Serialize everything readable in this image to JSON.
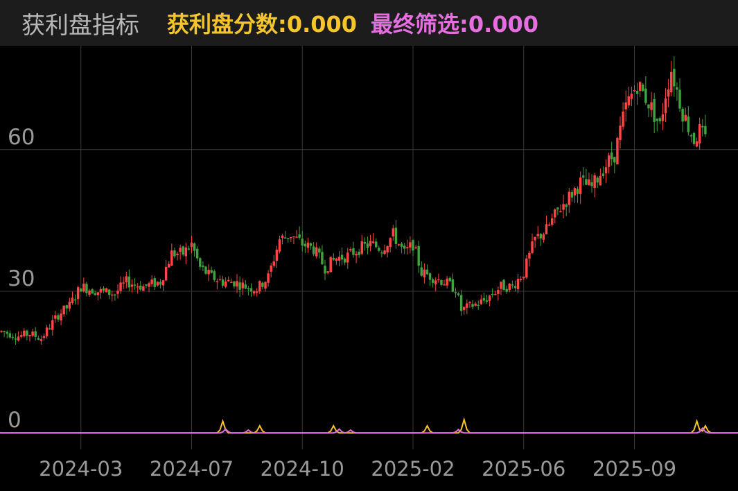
{
  "header": {
    "title": "获利盘指标",
    "score_label": "获利盘分数:",
    "score_value": "0.000",
    "final_label": "最终筛选:",
    "final_value": "0.000"
  },
  "colors": {
    "background": "#000000",
    "header_bg": "#1c1c1c",
    "up": "#ff4545",
    "down": "#3fa33f",
    "score_line": "#f5c52b",
    "final_line": "#e66ee0",
    "grid": "#3a3a3a",
    "text": "#9a9a9a"
  },
  "chart_data": {
    "type": "candlestick",
    "ylim": [
      -3.5,
      82
    ],
    "yticks": [
      {
        "value": 0,
        "label": "0"
      },
      {
        "value": 30,
        "label": "30"
      },
      {
        "value": 60,
        "label": "60"
      }
    ],
    "xticks": [
      "2024-03",
      "2024-07",
      "2024-10",
      "2025-02",
      "2025-06",
      "2025-09"
    ],
    "n_bars": 260,
    "tick_bar_index": [
      28,
      67,
      106,
      145,
      184,
      223
    ],
    "price_anchors": [
      [
        0,
        21.5
      ],
      [
        6,
        20.5
      ],
      [
        10,
        21
      ],
      [
        14,
        20
      ],
      [
        20,
        25
      ],
      [
        24,
        27
      ],
      [
        28,
        31
      ],
      [
        34,
        30
      ],
      [
        40,
        29.5
      ],
      [
        44,
        32
      ],
      [
        50,
        31
      ],
      [
        56,
        32
      ],
      [
        60,
        38
      ],
      [
        64,
        38
      ],
      [
        67,
        40
      ],
      [
        70,
        35
      ],
      [
        74,
        33
      ],
      [
        78,
        32
      ],
      [
        82,
        32
      ],
      [
        86,
        31
      ],
      [
        90,
        30.5
      ],
      [
        94,
        33
      ],
      [
        98,
        41
      ],
      [
        102,
        42
      ],
      [
        106,
        40
      ],
      [
        110,
        39
      ],
      [
        114,
        35
      ],
      [
        118,
        37
      ],
      [
        122,
        37.5
      ],
      [
        126,
        39
      ],
      [
        130,
        40
      ],
      [
        134,
        39
      ],
      [
        138,
        42
      ],
      [
        142,
        38
      ],
      [
        145,
        40
      ],
      [
        148,
        34
      ],
      [
        152,
        33
      ],
      [
        156,
        32
      ],
      [
        160,
        30.5
      ],
      [
        162,
        26
      ],
      [
        166,
        27
      ],
      [
        170,
        28
      ],
      [
        176,
        31
      ],
      [
        180,
        31
      ],
      [
        184,
        34
      ],
      [
        188,
        41
      ],
      [
        192,
        43
      ],
      [
        196,
        47
      ],
      [
        200,
        50
      ],
      [
        204,
        53
      ],
      [
        208,
        52
      ],
      [
        212,
        56
      ],
      [
        216,
        59
      ],
      [
        220,
        69
      ],
      [
        224,
        74
      ],
      [
        228,
        70
      ],
      [
        232,
        65
      ],
      [
        234,
        72
      ],
      [
        236,
        77
      ],
      [
        240,
        68
      ],
      [
        244,
        62
      ],
      [
        246,
        64
      ],
      [
        248,
        62
      ]
    ],
    "score_spikes": [
      [
        78,
        2.5
      ],
      [
        91,
        1.5
      ],
      [
        117,
        1.5
      ],
      [
        150,
        1.5
      ],
      [
        163,
        2.8
      ],
      [
        245,
        2.5
      ],
      [
        248,
        1.5
      ]
    ],
    "final_spikes": [
      [
        79,
        0.8
      ],
      [
        87,
        0.6
      ],
      [
        119,
        0.8
      ],
      [
        123,
        0.6
      ],
      [
        161,
        0.7
      ],
      [
        247,
        1.0
      ]
    ]
  }
}
